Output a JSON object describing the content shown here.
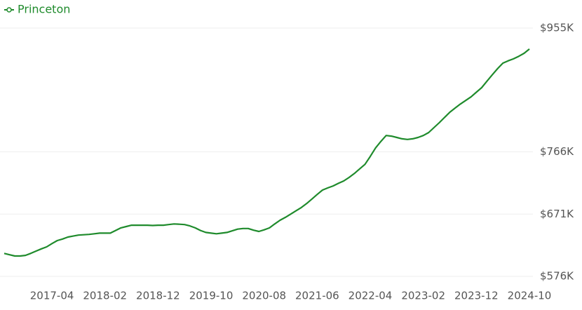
{
  "chart_data": {
    "type": "line",
    "categories": [
      null,
      null,
      null,
      null,
      null,
      null,
      null,
      null,
      null,
      "2017-04",
      null,
      null,
      null,
      null,
      null,
      null,
      null,
      null,
      null,
      "2018-02",
      null,
      null,
      null,
      null,
      null,
      null,
      null,
      null,
      null,
      "2018-12",
      null,
      null,
      null,
      null,
      null,
      null,
      null,
      null,
      null,
      "2019-10",
      null,
      null,
      null,
      null,
      null,
      null,
      null,
      null,
      null,
      "2020-08",
      null,
      null,
      null,
      null,
      null,
      null,
      null,
      null,
      null,
      "2021-06",
      null,
      null,
      null,
      null,
      null,
      null,
      null,
      null,
      null,
      "2022-04",
      null,
      null,
      null,
      null,
      null,
      null,
      null,
      null,
      null,
      "2023-02",
      null,
      null,
      null,
      null,
      null,
      null,
      null,
      null,
      null,
      "2023-12",
      null,
      null,
      null,
      null,
      null,
      null,
      null,
      null,
      null,
      "2024-10"
    ],
    "series": [
      {
        "name": "Princeton",
        "color": "#1f8b2c",
        "values": [
          611000,
          609000,
          607000,
          607000,
          608000,
          611000,
          614500,
          618000,
          621000,
          626000,
          630600,
          633000,
          636000,
          637500,
          639000,
          639500,
          640000,
          641000,
          642000,
          642000,
          642000,
          646000,
          650000,
          652000,
          654000,
          654000,
          654000,
          654000,
          653600,
          654000,
          654000,
          655000,
          656000,
          655500,
          655000,
          653000,
          650000,
          646000,
          643000,
          642000,
          641000,
          642000,
          643000,
          645500,
          648000,
          649000,
          649000,
          646500,
          644500,
          647000,
          650000,
          656000,
          661600,
          666000,
          671000,
          676000,
          681000,
          687000,
          694000,
          701000,
          707700,
          711000,
          714000,
          718000,
          721600,
          727000,
          733000,
          740000,
          747000,
          759000,
          772000,
          782000,
          791000,
          790000,
          788000,
          786000,
          785000,
          786000,
          788000,
          791000,
          795500,
          803000,
          810500,
          818500,
          826500,
          833000,
          839000,
          844500,
          850000,
          857000,
          864000,
          874000,
          883600,
          893000,
          901500,
          905000,
          908000,
          912000,
          916500,
          923000
        ]
      }
    ],
    "ylim": [
      576000,
      955000
    ],
    "yticks": [
      {
        "value": 576000,
        "label": "$576K"
      },
      {
        "value": 671000,
        "label": "$671K"
      },
      {
        "value": 766000,
        "label": "$766K"
      },
      {
        "value": 955000,
        "label": "$955K"
      }
    ],
    "grid": true,
    "legend": "top-left"
  }
}
